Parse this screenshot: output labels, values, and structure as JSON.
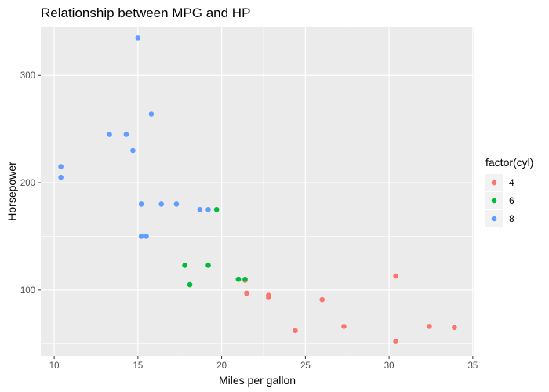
{
  "chart_data": {
    "type": "scatter",
    "title": "Relationship between MPG and HP",
    "xlabel": "Miles per gallon",
    "ylabel": "Horsepower",
    "xlim": [
      9.2,
      35.1
    ],
    "ylim": [
      38.5,
      345.5
    ],
    "x_ticks": [
      10,
      15,
      20,
      25,
      30,
      35
    ],
    "y_ticks": [
      100,
      200,
      300
    ],
    "grid": true,
    "legend": {
      "title": "factor(cyl)",
      "position": "right"
    },
    "series": [
      {
        "name": "4",
        "color": "#F8766D",
        "points": [
          {
            "x": 22.8,
            "y": 93
          },
          {
            "x": 24.4,
            "y": 62
          },
          {
            "x": 22.8,
            "y": 95
          },
          {
            "x": 32.4,
            "y": 66
          },
          {
            "x": 30.4,
            "y": 52
          },
          {
            "x": 33.9,
            "y": 65
          },
          {
            "x": 21.5,
            "y": 97
          },
          {
            "x": 27.3,
            "y": 66
          },
          {
            "x": 26.0,
            "y": 91
          },
          {
            "x": 30.4,
            "y": 113
          },
          {
            "x": 21.4,
            "y": 109
          }
        ]
      },
      {
        "name": "6",
        "color": "#00BA38",
        "points": [
          {
            "x": 21.0,
            "y": 110
          },
          {
            "x": 21.0,
            "y": 110
          },
          {
            "x": 21.4,
            "y": 110
          },
          {
            "x": 18.1,
            "y": 105
          },
          {
            "x": 19.2,
            "y": 123
          },
          {
            "x": 17.8,
            "y": 123
          },
          {
            "x": 19.7,
            "y": 175
          }
        ]
      },
      {
        "name": "8",
        "color": "#619CFF",
        "points": [
          {
            "x": 18.7,
            "y": 175
          },
          {
            "x": 14.3,
            "y": 245
          },
          {
            "x": 16.4,
            "y": 180
          },
          {
            "x": 17.3,
            "y": 180
          },
          {
            "x": 15.2,
            "y": 180
          },
          {
            "x": 10.4,
            "y": 205
          },
          {
            "x": 10.4,
            "y": 215
          },
          {
            "x": 14.7,
            "y": 230
          },
          {
            "x": 15.5,
            "y": 150
          },
          {
            "x": 15.2,
            "y": 150
          },
          {
            "x": 13.3,
            "y": 245
          },
          {
            "x": 19.2,
            "y": 175
          },
          {
            "x": 15.8,
            "y": 264
          },
          {
            "x": 15.0,
            "y": 335
          }
        ]
      }
    ]
  }
}
